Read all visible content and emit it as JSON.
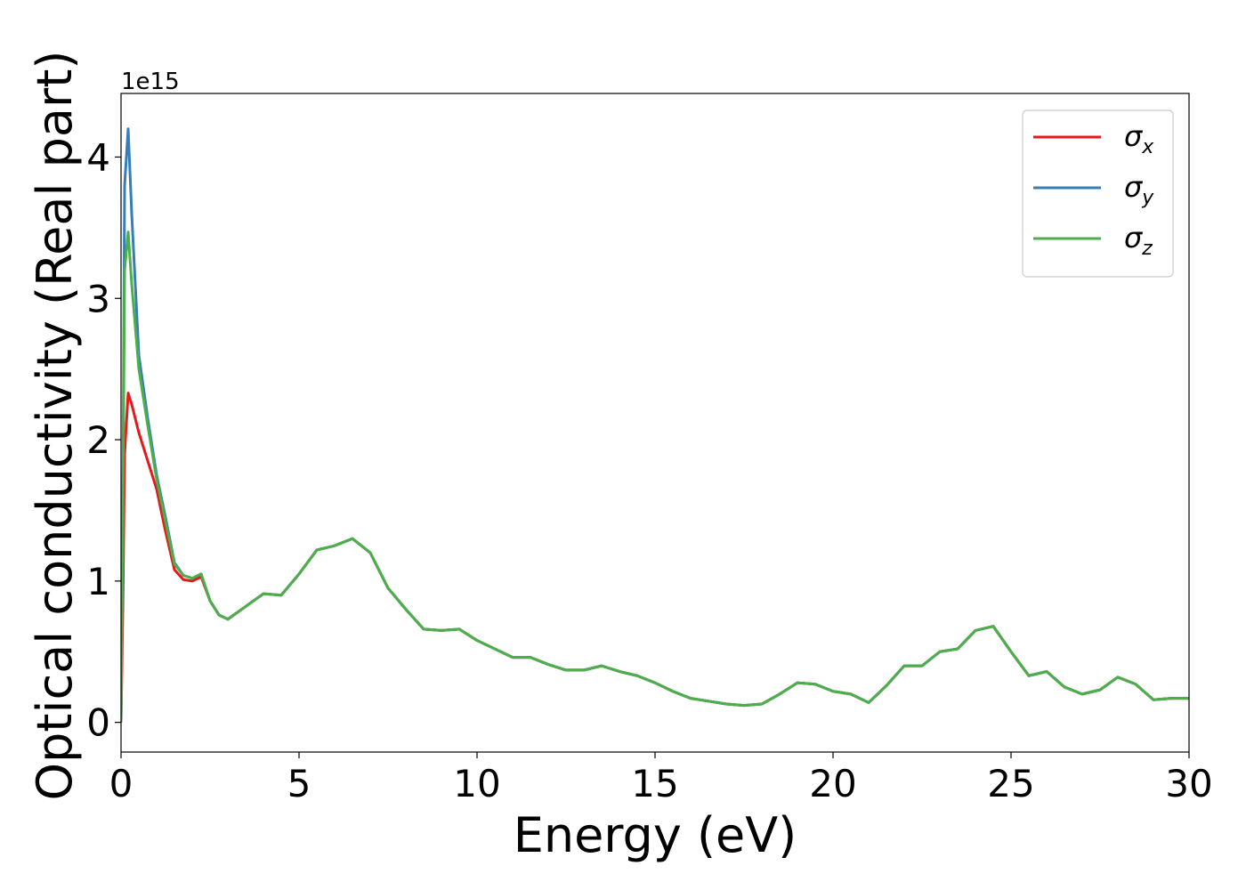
{
  "chart_data": {
    "type": "line",
    "xlabel": "Energy (eV)",
    "ylabel": "Optical conductivity (Real part)",
    "y_offset_label": "1e15",
    "xlim": [
      0,
      30
    ],
    "ylim": [
      -0.21,
      4.45
    ],
    "xticks": [
      0,
      5,
      10,
      15,
      20,
      25,
      30
    ],
    "yticks": [
      0,
      1,
      2,
      3,
      4
    ],
    "legend": "upper right",
    "grid": false,
    "x": [
      0,
      0.05,
      0.1,
      0.2,
      0.3,
      0.5,
      0.75,
      1,
      1.25,
      1.5,
      1.75,
      2,
      2.25,
      2.5,
      2.75,
      3,
      3.5,
      4,
      4.5,
      5,
      5.5,
      6,
      6.5,
      7,
      7.5,
      8,
      8.5,
      9,
      9.5,
      10,
      10.5,
      11,
      11.5,
      12,
      12.5,
      13,
      13.5,
      14,
      14.5,
      15,
      15.5,
      16,
      16.5,
      17,
      17.5,
      18,
      18.5,
      19,
      19.5,
      20,
      20.5,
      21,
      21.5,
      22,
      22.5,
      23,
      23.5,
      24,
      24.5,
      25,
      25.5,
      26,
      26.5,
      27,
      27.5,
      28,
      28.5,
      29,
      29.5,
      30
    ],
    "series": [
      {
        "name": "σx",
        "color": "#e41a1c",
        "values": [
          0,
          0.8,
          1.9,
          2.33,
          2.25,
          2.05,
          1.85,
          1.65,
          1.35,
          1.08,
          1.01,
          1.0,
          1.03,
          0.86,
          0.76,
          0.73,
          0.82,
          0.91,
          0.9,
          1.05,
          1.22,
          1.25,
          1.3,
          1.2,
          0.95,
          0.8,
          0.66,
          0.65,
          0.66,
          0.58,
          0.52,
          0.46,
          0.46,
          0.41,
          0.37,
          0.37,
          0.4,
          0.36,
          0.33,
          0.28,
          0.22,
          0.17,
          0.15,
          0.13,
          0.12,
          0.13,
          0.2,
          0.28,
          0.27,
          0.22,
          0.2,
          0.14,
          0.26,
          0.4,
          0.4,
          0.5,
          0.52,
          0.65,
          0.68,
          0.5,
          0.33,
          0.36,
          0.25,
          0.2,
          0.23,
          0.32,
          0.27,
          0.16,
          0.17,
          0.17
        ]
      },
      {
        "name": "σy",
        "color": "#377eb8",
        "values": [
          0,
          1.5,
          3.8,
          4.2,
          3.6,
          2.6,
          2.15,
          1.75,
          1.45,
          1.13,
          1.04,
          1.02,
          1.05,
          0.86,
          0.76,
          0.73,
          0.82,
          0.91,
          0.9,
          1.05,
          1.22,
          1.25,
          1.3,
          1.2,
          0.95,
          0.8,
          0.66,
          0.65,
          0.66,
          0.58,
          0.52,
          0.46,
          0.46,
          0.41,
          0.37,
          0.37,
          0.4,
          0.36,
          0.33,
          0.28,
          0.22,
          0.17,
          0.15,
          0.13,
          0.12,
          0.13,
          0.2,
          0.28,
          0.27,
          0.22,
          0.2,
          0.14,
          0.26,
          0.4,
          0.4,
          0.5,
          0.52,
          0.65,
          0.68,
          0.5,
          0.33,
          0.36,
          0.25,
          0.2,
          0.23,
          0.32,
          0.27,
          0.16,
          0.17,
          0.17
        ]
      },
      {
        "name": "σz",
        "color": "#4daf4a",
        "values": [
          0,
          1.4,
          3.2,
          3.47,
          3.1,
          2.5,
          2.1,
          1.72,
          1.42,
          1.12,
          1.04,
          1.02,
          1.05,
          0.86,
          0.76,
          0.73,
          0.82,
          0.91,
          0.9,
          1.05,
          1.22,
          1.25,
          1.3,
          1.2,
          0.95,
          0.8,
          0.66,
          0.65,
          0.66,
          0.58,
          0.52,
          0.46,
          0.46,
          0.41,
          0.37,
          0.37,
          0.4,
          0.36,
          0.33,
          0.28,
          0.22,
          0.17,
          0.15,
          0.13,
          0.12,
          0.13,
          0.2,
          0.28,
          0.27,
          0.22,
          0.2,
          0.14,
          0.26,
          0.4,
          0.4,
          0.5,
          0.52,
          0.65,
          0.68,
          0.5,
          0.33,
          0.36,
          0.25,
          0.2,
          0.23,
          0.32,
          0.27,
          0.16,
          0.17,
          0.17
        ]
      }
    ]
  }
}
